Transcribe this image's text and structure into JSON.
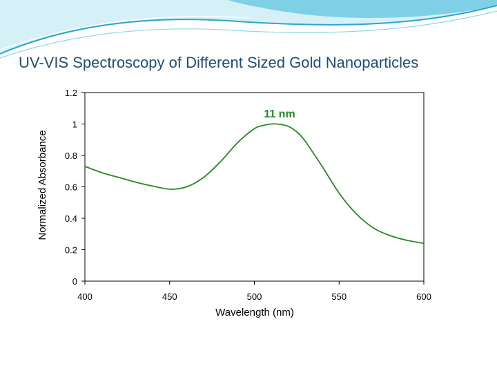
{
  "slide": {
    "title": "UV-VIS Spectroscopy of Different Sized Gold Nanoparticles"
  },
  "colors": {
    "title": "#1f4e79",
    "series": "#228b22",
    "header_light": "#bfe8f2",
    "header_mid": "#7fd0e6",
    "header_dark": "#2aa7c9"
  },
  "chart_data": {
    "type": "line",
    "xlabel": "Wavelength (nm)",
    "ylabel": "Normalized Absorbance",
    "xlim": [
      400,
      600
    ],
    "ylim": [
      0,
      1.2
    ],
    "x_ticks": [
      "400",
      "450",
      "500",
      "550",
      "600"
    ],
    "y_ticks": [
      "0",
      "0.2",
      "0.4",
      "0.6",
      "0.8",
      "1",
      "1.2"
    ],
    "grid": false,
    "series": [
      {
        "name": "11 nm",
        "x": [
          400,
          410,
          420,
          430,
          440,
          450,
          460,
          470,
          480,
          490,
          500,
          505,
          510,
          515,
          520,
          525,
          530,
          540,
          550,
          560,
          570,
          580,
          590,
          600
        ],
        "y": [
          0.73,
          0.69,
          0.66,
          0.63,
          0.605,
          0.585,
          0.6,
          0.66,
          0.76,
          0.88,
          0.97,
          0.99,
          1.0,
          0.998,
          0.985,
          0.95,
          0.89,
          0.73,
          0.56,
          0.43,
          0.34,
          0.29,
          0.26,
          0.24
        ]
      }
    ]
  }
}
